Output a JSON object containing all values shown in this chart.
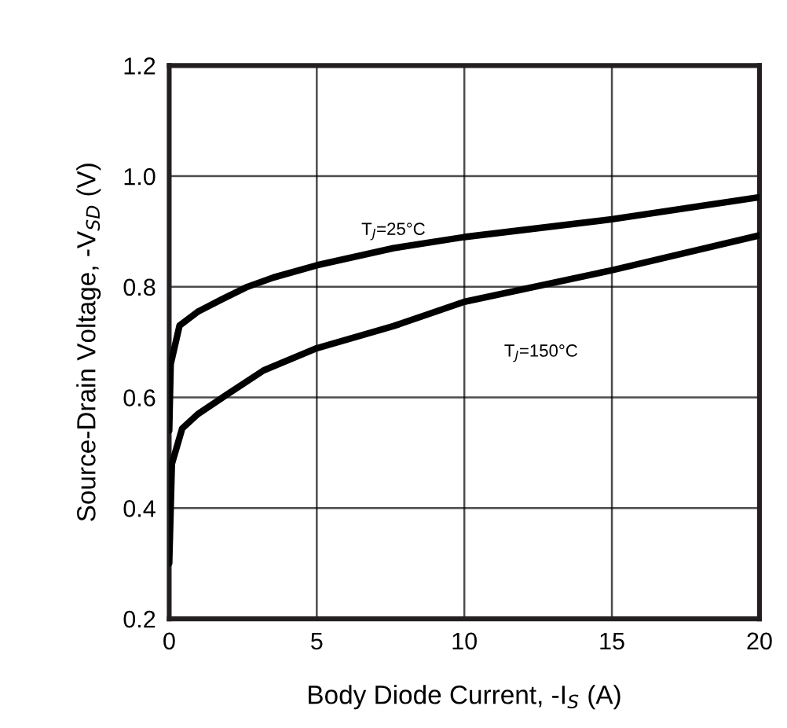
{
  "chart_data": {
    "type": "line",
    "xlabel": "Body Diode Current, -I$_{S}$ (A)",
    "ylabel": "Source-Drain Voltage, -V$_{SD}$ (V)",
    "series": [
      {
        "color": "#000000",
        "x": [
          0,
          0.05,
          0.35,
          0.97,
          1.77,
          2.65,
          3.54,
          5,
          7.6,
          10,
          15,
          20
        ],
        "values": [
          0.54,
          0.66,
          0.73,
          0.755,
          0.777,
          0.8,
          0.817,
          0.839,
          0.87,
          0.89,
          0.922,
          0.962
        ]
      },
      {
        "color": "#000000",
        "x": [
          0,
          0.09,
          0.44,
          0.97,
          1.95,
          3.2,
          5,
          7.6,
          10,
          15,
          20
        ],
        "values": [
          0.3,
          0.48,
          0.544,
          0.57,
          0.605,
          0.649,
          0.689,
          0.729,
          0.773,
          0.83,
          0.893
        ]
      }
    ],
    "annotations": [
      "T$_{J}$=25°C",
      "T$_{J}$=150°C"
    ],
    "xlim": [
      0,
      20
    ],
    "xticks": [
      0,
      5,
      10,
      15,
      20
    ],
    "ylim": [
      0.2,
      1.2
    ],
    "yticks": [
      0.2,
      0.4,
      0.6,
      0.8,
      {
        "value": 1.0,
        "label": "1.0"
      },
      1.2
    ],
    "grid": true,
    "marker": "none",
    "line_style": "solid"
  }
}
